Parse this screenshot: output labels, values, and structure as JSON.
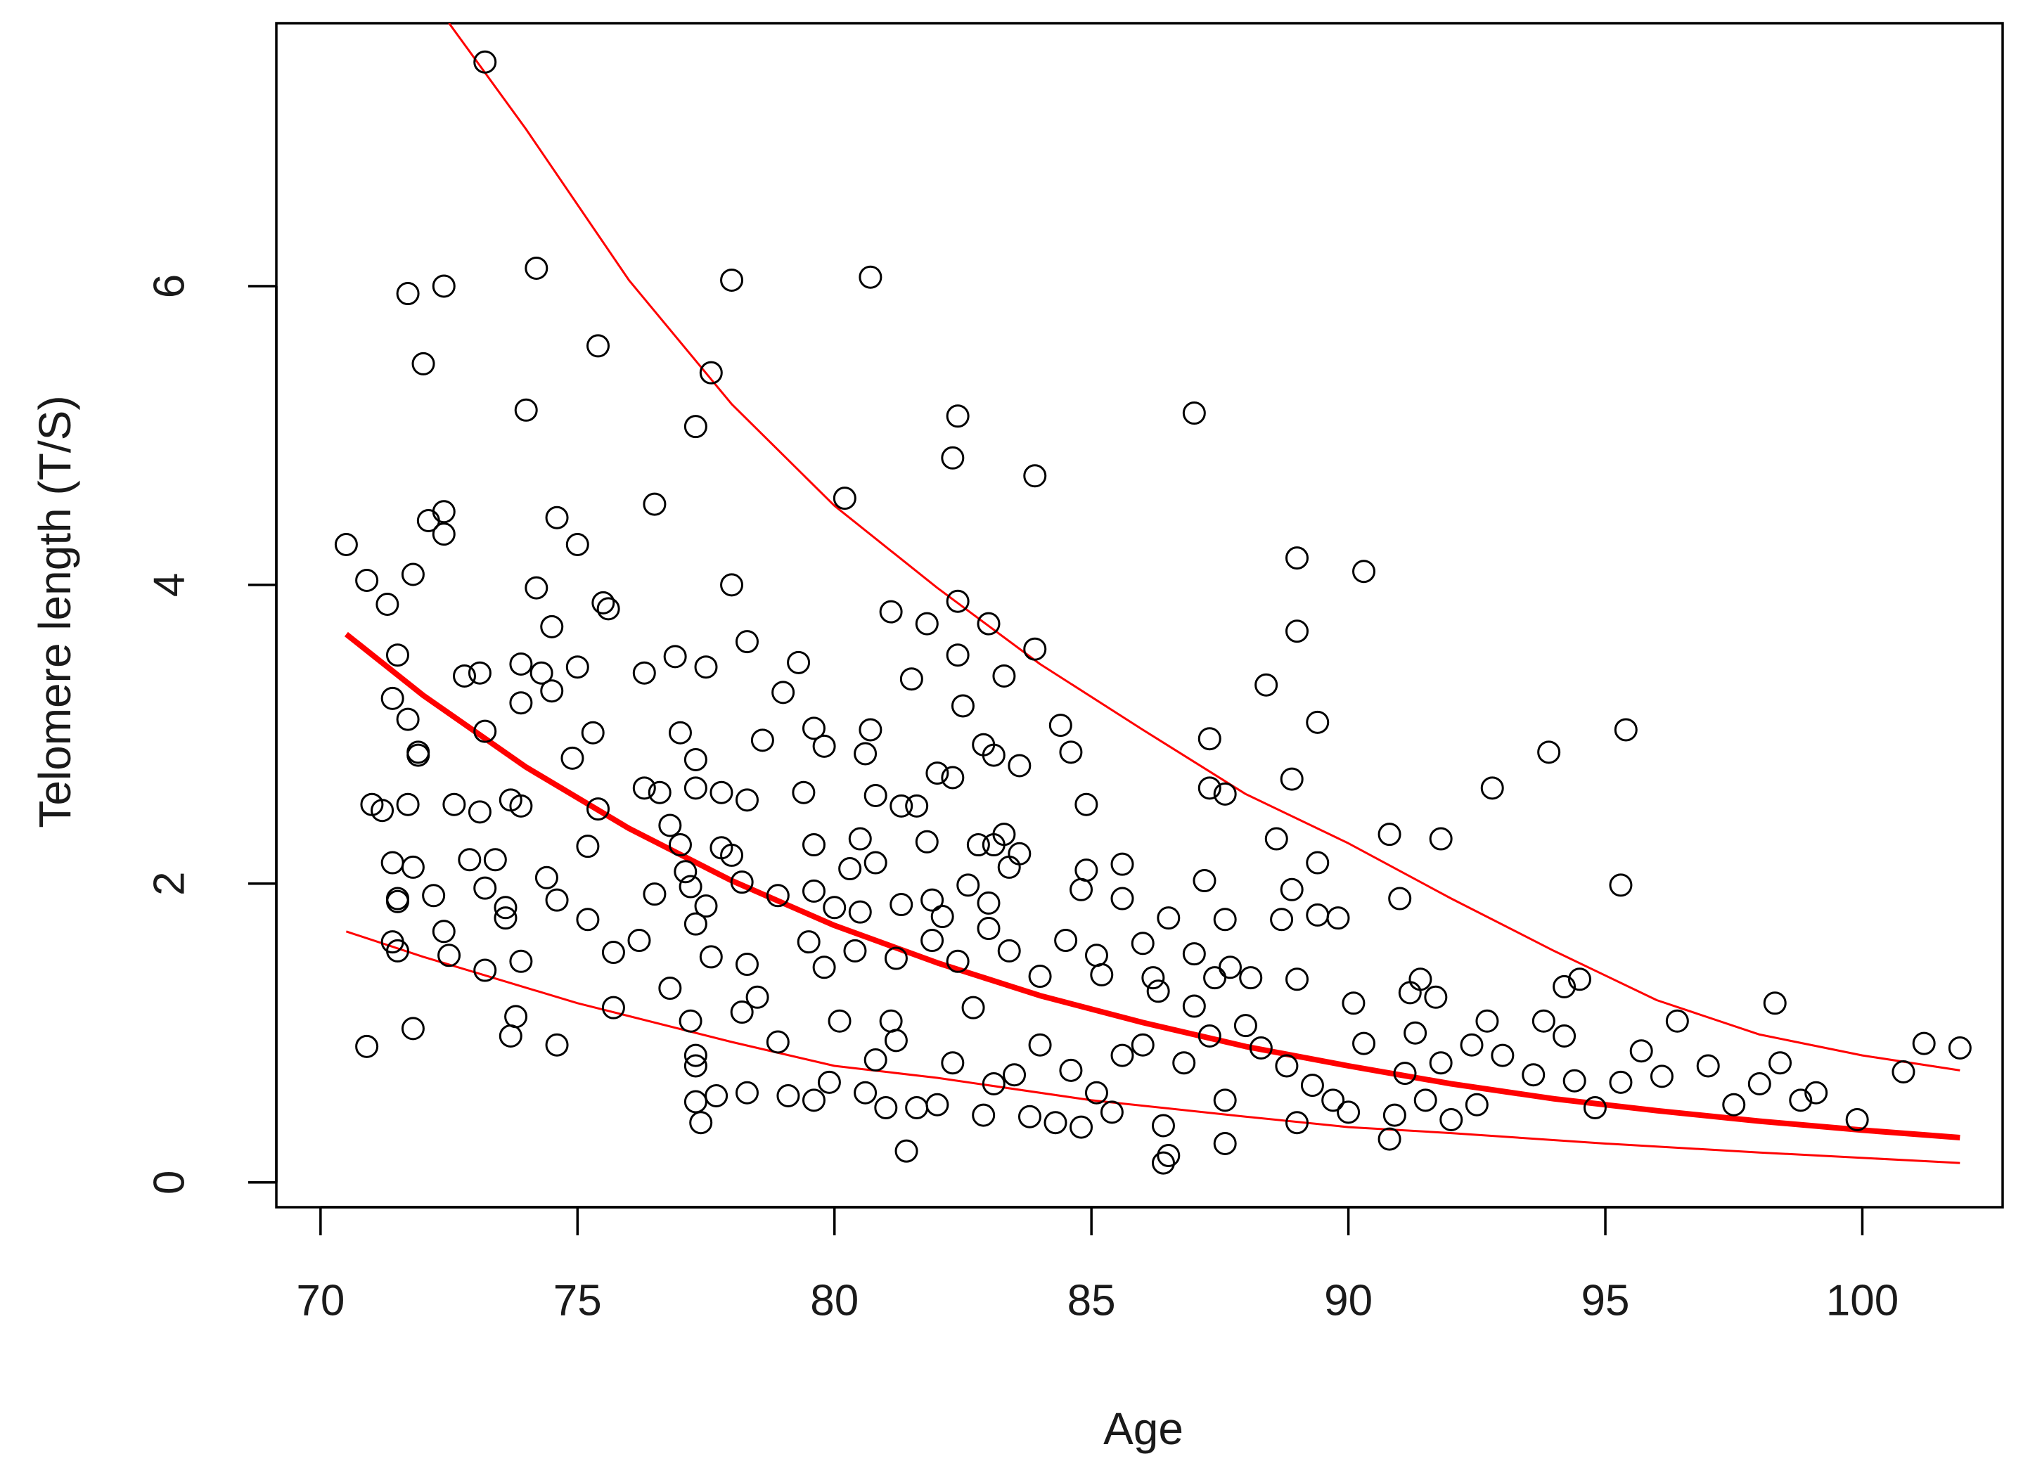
{
  "chart_data": {
    "type": "scatter",
    "x_label": "Age",
    "y_label": "Telomere length (T/S)",
    "xlim": [
      69.14,
      102.73
    ],
    "ylim": [
      -0.166,
      7.76
    ],
    "xticks": [
      70,
      75,
      80,
      85,
      90,
      95,
      100
    ],
    "yticks": [
      0,
      2,
      4,
      6
    ],
    "point_color": "#000000",
    "x": [
      73.2,
      71.7,
      72.4,
      74.2,
      72.0,
      75.4,
      74.0,
      78.0,
      80.7,
      77.6,
      77.3,
      82.4,
      82.3,
      83.9,
      87.0,
      80.2,
      76.5,
      74.6,
      72.4,
      72.1,
      72.4,
      70.5,
      75.0,
      71.8,
      70.9,
      74.2,
      78.0,
      89.0,
      90.3,
      71.3,
      75.5,
      75.6,
      74.5,
      81.1,
      81.8,
      82.4,
      83.0,
      89.0,
      78.3,
      83.9,
      71.5,
      73.9,
      75.0,
      76.9,
      77.5,
      79.3,
      82.4,
      76.3,
      72.8,
      73.1,
      74.3,
      81.5,
      83.3,
      88.4,
      71.4,
      73.9,
      74.5,
      79.0,
      82.5,
      71.7,
      75.3,
      73.2,
      77.0,
      79.6,
      80.7,
      84.4,
      89.4,
      95.4,
      87.3,
      71.9,
      71.9,
      74.9,
      77.3,
      78.6,
      79.8,
      80.6,
      82.9,
      83.1,
      83.6,
      84.6,
      93.9,
      88.9,
      92.8,
      87.3,
      87.6,
      71.0,
      71.2,
      71.7,
      72.6,
      73.1,
      73.7,
      73.9,
      75.4,
      76.3,
      76.6,
      77.3,
      77.8,
      78.3,
      79.4,
      80.8,
      81.3,
      81.6,
      82.0,
      82.3,
      84.9,
      76.8,
      77.0,
      79.6,
      80.5,
      81.8,
      82.8,
      83.1,
      83.3,
      83.6,
      88.6,
      91.8,
      90.8,
      71.4,
      71.8,
      72.9,
      73.4,
      74.4,
      75.2,
      77.1,
      77.8,
      78.0,
      80.3,
      80.8,
      83.4,
      84.9,
      85.6,
      87.2,
      89.4,
      95.3,
      71.5,
      71.5,
      72.2,
      73.2,
      73.6,
      73.6,
      74.6,
      75.2,
      76.5,
      77.2,
      77.5,
      78.2,
      78.9,
      79.6,
      80.0,
      80.5,
      81.3,
      81.9,
      82.1,
      82.6,
      83.0,
      84.8,
      85.6,
      86.5,
      87.6,
      88.9,
      88.7,
      89.4,
      89.8,
      91.0,
      72.4,
      71.4,
      71.5,
      72.5,
      73.2,
      73.9,
      75.7,
      76.2,
      77.3,
      77.6,
      78.3,
      79.5,
      79.8,
      80.4,
      81.2,
      81.9,
      82.4,
      83.0,
      83.4,
      84.0,
      84.5,
      85.1,
      85.2,
      86.0,
      86.2,
      87.0,
      87.4,
      87.7,
      88.1,
      89.0,
      91.2,
      91.4,
      91.7,
      94.5,
      94.2,
      70.9,
      71.8,
      73.8,
      73.7,
      74.6,
      75.7,
      76.8,
      77.2,
      77.3,
      77.3,
      77.3,
      77.4,
      77.7,
      78.3,
      78.2,
      78.5,
      78.9,
      79.1,
      79.6,
      79.9,
      80.1,
      80.6,
      80.8,
      81.0,
      81.1,
      81.4,
      81.2,
      81.6,
      82.0,
      82.3,
      82.7,
      82.9,
      83.1,
      83.5,
      83.8,
      84.0,
      84.3,
      84.6,
      84.8,
      85.1,
      85.4,
      85.6,
      86.0,
      86.3,
      86.4,
      86.4,
      86.5,
      86.8,
      87.0,
      87.3,
      87.6,
      87.6,
      88.0,
      88.3,
      88.8,
      89.0,
      89.3,
      89.7,
      90.0,
      90.1,
      90.3,
      90.8,
      90.9,
      91.1,
      91.3,
      91.5,
      91.8,
      92.0,
      92.4,
      92.5,
      92.7,
      93.0,
      93.6,
      93.8,
      94.2,
      94.4,
      94.8,
      95.3,
      95.7,
      96.1,
      96.4,
      97.0,
      97.5,
      98.0,
      98.3,
      98.4,
      98.8,
      99.1,
      99.9,
      100.8,
      101.2,
      101.9
    ],
    "y": [
      7.5,
      5.95,
      6.0,
      6.12,
      5.48,
      5.6,
      5.17,
      6.04,
      6.06,
      5.42,
      5.06,
      5.13,
      4.85,
      4.73,
      5.15,
      4.58,
      4.54,
      4.45,
      4.49,
      4.43,
      4.34,
      4.27,
      4.27,
      4.07,
      4.03,
      3.98,
      4.0,
      4.18,
      4.09,
      3.87,
      3.88,
      3.84,
      3.72,
      3.82,
      3.74,
      3.89,
      3.74,
      3.69,
      3.62,
      3.57,
      3.53,
      3.47,
      3.45,
      3.52,
      3.45,
      3.48,
      3.53,
      3.41,
      3.39,
      3.41,
      3.41,
      3.37,
      3.39,
      3.33,
      3.24,
      3.21,
      3.29,
      3.28,
      3.19,
      3.1,
      3.01,
      3.02,
      3.01,
      3.04,
      3.03,
      3.06,
      3.08,
      3.03,
      2.97,
      2.88,
      2.86,
      2.84,
      2.83,
      2.96,
      2.92,
      2.87,
      2.93,
      2.86,
      2.79,
      2.88,
      2.88,
      2.7,
      2.64,
      2.64,
      2.6,
      2.53,
      2.49,
      2.53,
      2.53,
      2.48,
      2.56,
      2.52,
      2.5,
      2.64,
      2.61,
      2.64,
      2.61,
      2.56,
      2.61,
      2.59,
      2.52,
      2.52,
      2.74,
      2.71,
      2.53,
      2.39,
      2.26,
      2.26,
      2.3,
      2.28,
      2.26,
      2.26,
      2.33,
      2.2,
      2.3,
      2.3,
      2.33,
      2.14,
      2.11,
      2.16,
      2.16,
      2.04,
      2.25,
      2.08,
      2.24,
      2.19,
      2.1,
      2.14,
      2.11,
      2.09,
      2.13,
      2.02,
      2.14,
      1.99,
      1.9,
      1.88,
      1.92,
      1.97,
      1.84,
      1.77,
      1.89,
      1.76,
      1.93,
      1.98,
      1.85,
      2.01,
      1.92,
      1.95,
      1.84,
      1.81,
      1.86,
      1.89,
      1.78,
      1.99,
      1.87,
      1.96,
      1.9,
      1.77,
      1.76,
      1.96,
      1.76,
      1.79,
      1.77,
      1.9,
      1.68,
      1.61,
      1.55,
      1.52,
      1.42,
      1.48,
      1.54,
      1.62,
      1.73,
      1.51,
      1.46,
      1.61,
      1.44,
      1.55,
      1.5,
      1.62,
      1.48,
      1.7,
      1.55,
      1.38,
      1.62,
      1.52,
      1.39,
      1.6,
      1.37,
      1.53,
      1.37,
      1.44,
      1.37,
      1.36,
      1.27,
      1.36,
      1.24,
      1.36,
      1.31,
      0.91,
      1.03,
      1.11,
      0.98,
      0.92,
      1.17,
      1.3,
      1.08,
      0.85,
      0.78,
      0.54,
      0.4,
      0.58,
      0.6,
      1.14,
      1.24,
      0.94,
      0.58,
      0.55,
      0.67,
      1.08,
      0.6,
      0.82,
      0.5,
      1.08,
      0.21,
      0.95,
      0.5,
      0.52,
      0.8,
      1.17,
      0.45,
      0.66,
      0.72,
      0.44,
      0.92,
      0.4,
      0.75,
      0.37,
      0.6,
      0.47,
      0.85,
      0.92,
      1.28,
      0.38,
      0.13,
      0.18,
      0.8,
      1.18,
      0.98,
      0.26,
      0.55,
      1.05,
      0.9,
      0.78,
      0.4,
      0.65,
      0.55,
      0.47,
      1.2,
      0.93,
      0.29,
      0.45,
      0.73,
      1.0,
      0.55,
      0.8,
      0.42,
      0.92,
      0.52,
      1.08,
      0.85,
      0.72,
      1.08,
      0.98,
      0.68,
      0.5,
      0.67,
      0.88,
      0.71,
      1.08,
      0.78,
      0.52,
      0.66,
      1.2,
      0.8,
      0.55,
      0.6,
      0.42,
      0.74,
      0.93,
      0.9
    ],
    "lines": [
      {
        "color": "#ff0000",
        "x": [
          70.5,
          72,
          74,
          76,
          78,
          80,
          82,
          84,
          86,
          88,
          90,
          92,
          94,
          96,
          98,
          100,
          101.9
        ],
        "values": [
          3.67,
          3.26,
          2.78,
          2.37,
          2.02,
          1.72,
          1.47,
          1.25,
          1.07,
          0.91,
          0.78,
          0.66,
          0.56,
          0.48,
          0.41,
          0.35,
          0.3
        ]
      },
      {
        "color": "#ff0000",
        "x": [
          72.5,
          74,
          76,
          78,
          80,
          82,
          84,
          86,
          88,
          90,
          92,
          94,
          96,
          98,
          100,
          101.9
        ],
        "values": [
          7.76,
          7.05,
          6.04,
          5.21,
          4.53,
          3.98,
          3.47,
          3.03,
          2.6,
          2.27,
          1.9,
          1.55,
          1.22,
          0.99,
          0.85,
          0.75
        ]
      },
      {
        "color": "#ff0000",
        "x": [
          70.5,
          72,
          75,
          78,
          80,
          82,
          85,
          88,
          90,
          92,
          95,
          98,
          101.9
        ],
        "values": [
          1.68,
          1.51,
          1.2,
          0.94,
          0.78,
          0.7,
          0.55,
          0.44,
          0.37,
          0.33,
          0.26,
          0.2,
          0.13
        ]
      }
    ]
  }
}
